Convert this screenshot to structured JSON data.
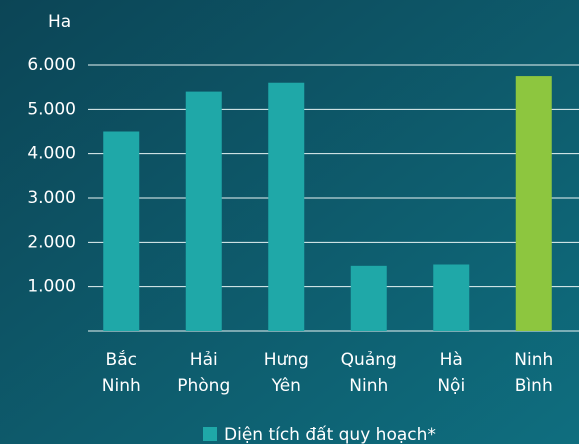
{
  "chart_data": {
    "type": "bar",
    "y_label": "Ha",
    "categories": [
      "Bắc Ninh",
      "Hải Phòng",
      "Hưng Yên",
      "Quảng Ninh",
      "Hà Nội",
      "Ninh Bình"
    ],
    "series": [
      {
        "name": "Diện tích đất quy hoạch*",
        "color": "#1fa8a8",
        "values": [
          4500,
          5400,
          5600,
          1470,
          1500,
          5750
        ]
      }
    ],
    "bar_colors": [
      "#1fa8a8",
      "#1fa8a8",
      "#1fa8a8",
      "#1fa8a8",
      "#1fa8a8",
      "#8dc63f"
    ],
    "ylim": [
      0,
      6000
    ],
    "yticks": [
      {
        "value": 1000,
        "label": "1.000"
      },
      {
        "value": 2000,
        "label": "2.000"
      },
      {
        "value": 3000,
        "label": "3.000"
      },
      {
        "value": 4000,
        "label": "4.000"
      },
      {
        "value": 5000,
        "label": "5.000"
      },
      {
        "value": 6000,
        "label": "6.000"
      }
    ],
    "grid": true
  }
}
